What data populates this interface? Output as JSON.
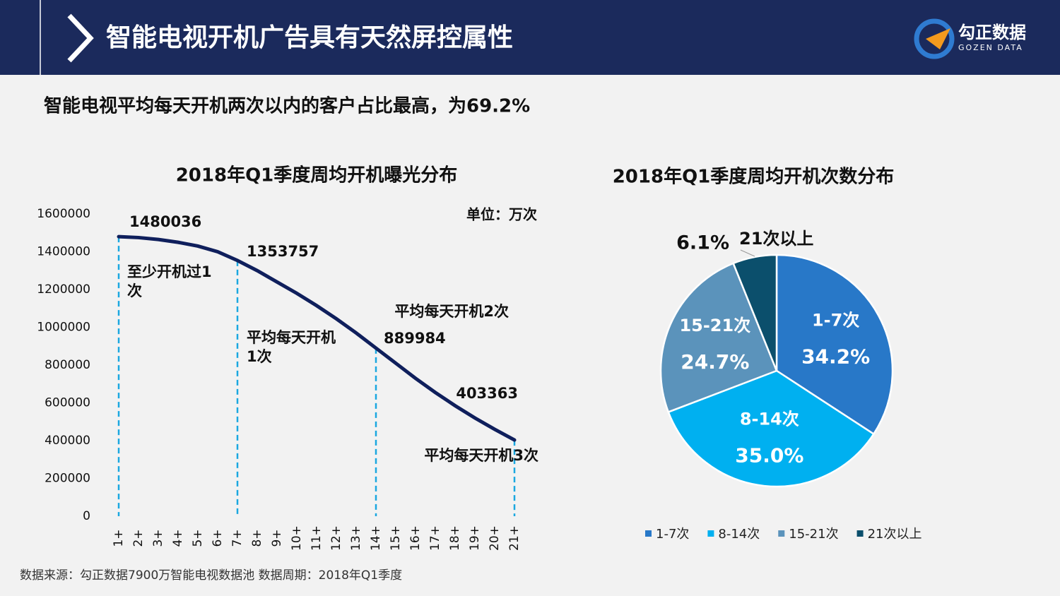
{
  "header": {
    "title": "智能电视开机广告具有天然屏控属性",
    "logo": "勾正数据",
    "logo_sub": "GOZEN DATA"
  },
  "subtitle": "智能电视平均每天开机两次以内的客户占比最高，为69.2%",
  "source": "数据来源：勾正数据7900万智能电视数据池  数据周期：2018年Q1季度",
  "chart_data": [
    {
      "type": "line",
      "title": "2018年Q1季度周均开机曝光分布",
      "unit": "单位：万次",
      "color": "#0f1f5c",
      "categories": [
        "1+",
        "2+",
        "3+",
        "4+",
        "5+",
        "6+",
        "7+",
        "8+",
        "9+",
        "10+",
        "11+",
        "12+",
        "13+",
        "14+",
        "15+",
        "16+",
        "17+",
        "18+",
        "19+",
        "20+",
        "21+"
      ],
      "values": [
        1480036,
        1475000,
        1465000,
        1450000,
        1430000,
        1400000,
        1353757,
        1300000,
        1240000,
        1180000,
        1115000,
        1045000,
        970000,
        889984,
        810000,
        730000,
        655000,
        585000,
        520000,
        460000,
        403363
      ],
      "value_labels": [
        "1480036",
        null,
        null,
        null,
        null,
        null,
        "1353757",
        null,
        null,
        null,
        null,
        null,
        null,
        "889984",
        null,
        null,
        null,
        null,
        null,
        null,
        "403363"
      ],
      "annotations": [
        "至少开机过1次",
        "平均每天开机1次",
        "平均每天开机2次",
        "平均每天开机3次"
      ],
      "ylim": [
        0,
        1600000
      ],
      "yticks": [
        0,
        200000,
        400000,
        600000,
        800000,
        1000000,
        1200000,
        1400000,
        1600000
      ],
      "grid": false
    },
    {
      "type": "pie",
      "title": "2018年Q1季度周均开机次数分布",
      "categories": [
        "1-7次",
        "8-14次",
        "15-21次",
        "21次以上"
      ],
      "values": [
        34.2,
        35.0,
        24.7,
        6.1
      ],
      "value_labels": [
        "34.2%",
        "35.0%",
        "24.7%",
        "6.1%"
      ],
      "colors": [
        "#2878c8",
        "#00b0f0",
        "#5b93bb",
        "#0b4f6c"
      ],
      "legend": "bottom"
    }
  ]
}
